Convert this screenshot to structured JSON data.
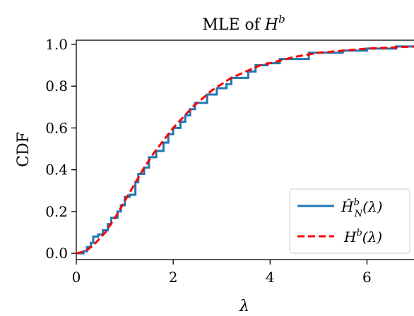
{
  "chart_data": {
    "type": "line",
    "title": "MLE of H^b",
    "title_parts": {
      "main": "MLE of ",
      "var": "H",
      "sup": "b"
    },
    "xlabel": "λ",
    "ylabel": "CDF",
    "xlim": [
      0,
      7
    ],
    "ylim": [
      -0.03,
      1.02
    ],
    "xticks": [
      0,
      2,
      4,
      6
    ],
    "yticks": [
      0.0,
      0.2,
      0.4,
      0.6,
      0.8,
      1.0
    ],
    "xtick_labels": [
      "0",
      "2",
      "4",
      "6"
    ],
    "ytick_labels": [
      "0.0",
      "0.2",
      "0.4",
      "0.6",
      "0.8",
      "1.0"
    ],
    "grid": false,
    "legend_position": "lower-right",
    "colors": {
      "empirical": "#1f77b4",
      "theoretical": "#ff0000"
    },
    "series": [
      {
        "name": "Ĥ_N^b(λ)",
        "style": "step",
        "points": [
          [
            0.0,
            0.0
          ],
          [
            0.15,
            0.01
          ],
          [
            0.22,
            0.03
          ],
          [
            0.3,
            0.05
          ],
          [
            0.35,
            0.08
          ],
          [
            0.45,
            0.09
          ],
          [
            0.55,
            0.11
          ],
          [
            0.65,
            0.14
          ],
          [
            0.72,
            0.17
          ],
          [
            0.85,
            0.2
          ],
          [
            0.92,
            0.23
          ],
          [
            1.0,
            0.27
          ],
          [
            1.1,
            0.28
          ],
          [
            1.22,
            0.34
          ],
          [
            1.28,
            0.38
          ],
          [
            1.4,
            0.41
          ],
          [
            1.5,
            0.46
          ],
          [
            1.65,
            0.49
          ],
          [
            1.8,
            0.53
          ],
          [
            1.9,
            0.57
          ],
          [
            2.0,
            0.6
          ],
          [
            2.15,
            0.63
          ],
          [
            2.25,
            0.66
          ],
          [
            2.35,
            0.69
          ],
          [
            2.45,
            0.72
          ],
          [
            2.7,
            0.76
          ],
          [
            2.9,
            0.79
          ],
          [
            3.1,
            0.81
          ],
          [
            3.2,
            0.84
          ],
          [
            3.55,
            0.87
          ],
          [
            3.7,
            0.9
          ],
          [
            3.95,
            0.91
          ],
          [
            4.2,
            0.93
          ],
          [
            4.8,
            0.96
          ],
          [
            5.5,
            0.97
          ],
          [
            6.0,
            0.98
          ],
          [
            6.6,
            0.99
          ],
          [
            7.0,
            0.99
          ]
        ]
      },
      {
        "name": "H^b(λ)",
        "style": "dashed",
        "points": [
          [
            0.0,
            0.0
          ],
          [
            0.2,
            0.01
          ],
          [
            0.4,
            0.05
          ],
          [
            0.6,
            0.1
          ],
          [
            0.8,
            0.17
          ],
          [
            1.0,
            0.25
          ],
          [
            1.2,
            0.33
          ],
          [
            1.4,
            0.41
          ],
          [
            1.6,
            0.48
          ],
          [
            1.8,
            0.54
          ],
          [
            2.0,
            0.6
          ],
          [
            2.2,
            0.65
          ],
          [
            2.4,
            0.7
          ],
          [
            2.6,
            0.74
          ],
          [
            2.8,
            0.78
          ],
          [
            3.0,
            0.81
          ],
          [
            3.2,
            0.84
          ],
          [
            3.5,
            0.87
          ],
          [
            3.8,
            0.9
          ],
          [
            4.0,
            0.91
          ],
          [
            4.5,
            0.94
          ],
          [
            5.0,
            0.96
          ],
          [
            5.5,
            0.97
          ],
          [
            6.0,
            0.98
          ],
          [
            6.5,
            0.985
          ],
          [
            7.0,
            0.99
          ]
        ]
      }
    ],
    "legend": [
      {
        "key": "empirical",
        "base": "Ĥ",
        "sup": "b",
        "sub": "N",
        "arg": "(λ)"
      },
      {
        "key": "theoretical",
        "base": "H",
        "sup": "b",
        "sub": "",
        "arg": "(λ)"
      }
    ]
  }
}
